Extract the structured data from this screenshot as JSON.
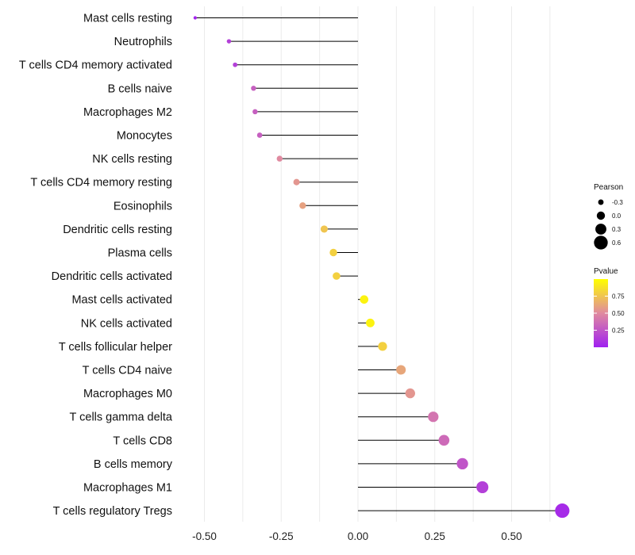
{
  "chart_data": {
    "type": "lollipop",
    "title": "",
    "xlabel": "",
    "ylabel": "",
    "xlim": [
      -0.55,
      0.7
    ],
    "xticks": [
      -0.5,
      -0.25,
      0.0,
      0.25,
      0.5
    ],
    "xtick_labels": [
      "-0.50",
      "-0.25",
      "0.00",
      "0.25",
      "0.50"
    ],
    "grid": true,
    "categories": [
      "Mast cells resting",
      "Neutrophils",
      "T cells CD4 memory activated",
      "B cells naive",
      "Macrophages M2",
      "Monocytes",
      "NK cells resting",
      "T cells CD4 memory resting",
      "Eosinophils",
      "Dendritic cells resting",
      "Plasma cells",
      "Dendritic cells activated",
      "Mast cells activated",
      "NK cells activated",
      "T cells follicular helper",
      "T cells CD4 naive",
      "Macrophages M0",
      "T cells gamma delta",
      "T cells CD8",
      "B cells memory",
      "Macrophages M1",
      "T cells regulatory  Tregs"
    ],
    "pearson": [
      -0.53,
      -0.42,
      -0.4,
      -0.34,
      -0.335,
      -0.32,
      -0.255,
      -0.2,
      -0.18,
      -0.11,
      -0.08,
      -0.07,
      0.02,
      0.04,
      0.08,
      0.14,
      0.17,
      0.245,
      0.28,
      0.34,
      0.405,
      0.665
    ],
    "pvalue": [
      0.02,
      0.15,
      0.15,
      0.3,
      0.3,
      0.3,
      0.5,
      0.55,
      0.6,
      0.75,
      0.8,
      0.8,
      0.95,
      0.95,
      0.8,
      0.62,
      0.55,
      0.4,
      0.35,
      0.25,
      0.15,
      0.05
    ],
    "legend": {
      "size_title": "Pearson",
      "size_labels": [
        "-0.3",
        "0.0",
        "0.3",
        "0.6"
      ],
      "size_values": [
        -0.3,
        0.0,
        0.3,
        0.6
      ],
      "color_title": "Pvalue",
      "color_ticks": [
        "0.25",
        "0.50",
        "0.75"
      ],
      "color_tick_values": [
        0.25,
        0.5,
        0.75
      ],
      "color_range": [
        0.0,
        1.0
      ],
      "color_low": "#a020f0",
      "color_mid": "#e08aa0",
      "color_high": "#ffff00"
    }
  }
}
